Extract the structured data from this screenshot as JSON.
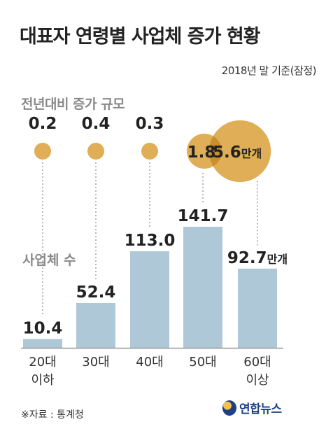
{
  "title": "대표자 연령별 사업체 증가 현황",
  "basis": "2018년 말 기준(잠정)",
  "source": "※자료 : 통계청",
  "logo_text": "연합뉴스",
  "colors": {
    "bar": "#afc8d8",
    "bubble": "#dfae56",
    "bubble_overlap": "#c88f2d",
    "baseline": "#999999",
    "leader": "#999999"
  },
  "chart_data": [
    {
      "type": "bar",
      "title": "사업체 수",
      "unit": "만개",
      "categories": [
        "20대\n이하",
        "30대",
        "40대",
        "50대",
        "60대\n이상"
      ],
      "values": [
        10.4,
        52.4,
        113.0,
        141.7,
        92.7
      ],
      "value_labels": [
        "10.4",
        "52.4",
        "113.0",
        "141.7",
        "92.7"
      ],
      "ylim": [
        0,
        141.7
      ]
    },
    {
      "type": "bubble",
      "title": "전년대비 증가 규모",
      "unit": "만개",
      "categories": [
        "20대\n이하",
        "30대",
        "40대",
        "50대",
        "60대\n이상"
      ],
      "values": [
        0.2,
        0.4,
        0.3,
        1.8,
        5.6
      ],
      "value_labels": [
        "0.2",
        "0.4",
        "0.3",
        "1.8",
        "5.6"
      ]
    }
  ]
}
